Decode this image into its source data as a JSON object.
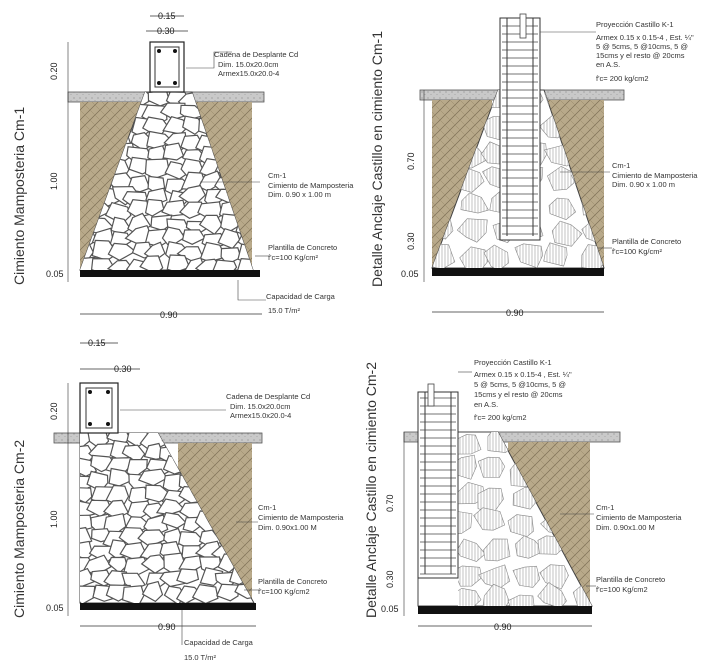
{
  "colors": {
    "soil": "#b8a98a",
    "slab": "#c9c9c9",
    "stone_fill": "#ffffff",
    "stone_line": "#555555",
    "base": "#111111",
    "ink": "#333333"
  },
  "panel1": {
    "vertical_title": "Cimiento Mamposteria Cm-1",
    "dim_015": "0.15",
    "dim_030": "0.30",
    "dim_020": "0.20",
    "dim_100": "1.00",
    "dim_005": "0.05",
    "dim_090": "0.90",
    "cadena_lines": [
      "Cadena de Desplante Cd",
      "Dim. 15.0x20.0cm",
      "Armex15.0x20.0-4"
    ],
    "cm_lines": [
      "Cm-1",
      "Cimiento de Mamposteria",
      "Dim. 0.90 x 1.00 m"
    ],
    "plantilla_lines": [
      "Plantilla de Concreto",
      "f'c=100 Kg/cm²"
    ],
    "capacidad_lines": [
      "Capacidad de Carga",
      "15.0 T/m²"
    ]
  },
  "panel2": {
    "vertical_title": "Detalle Anclaje Castillo en cimiento Cm-1",
    "dim_070": "0.70",
    "dim_030": "0.30",
    "dim_005": "0.05",
    "dim_090": "0.90",
    "castillo_lines": [
      "Proyección Castillo K-1",
      "Armex 0.15 x 0.15-4 , Est. ¼\"",
      "5 @ 5cms, 5 @10cms, 5 @",
      "15cms y el resto @ 20cms",
      "en A.S.",
      "f'c= 200 kg/cm2"
    ],
    "cm_lines": [
      "Cm-1",
      "Cimiento de Mamposteria",
      "Dim. 0.90 x 1.00 m"
    ],
    "plantilla_lines": [
      "Plantilla de Concreto",
      "f'c=100 Kg/cm²"
    ]
  },
  "panel3": {
    "vertical_title": "Cimiento Mamposteria Cm-2",
    "dim_015": "0.15",
    "dim_030": "0.30",
    "dim_020": "0.20",
    "dim_100": "1.00",
    "dim_005": "0.05",
    "dim_090": "0.90",
    "cadena_lines": [
      "Cadena de Desplante Cd",
      "Dim. 15.0x20.0cm",
      "Armex15.0x20.0-4"
    ],
    "cm_lines": [
      "Cm-1",
      "Cimiento de Mamposteria",
      "Dim. 0.90x1.00 M"
    ],
    "plantilla_lines": [
      "Plantilla de Concreto",
      "f'c=100 Kg/cm2"
    ],
    "capacidad_lines": [
      "Capacidad de Carga",
      "15.0 T/m²"
    ]
  },
  "panel4": {
    "vertical_title": "Detalle Anclaje Castillo en cimiento Cm-2",
    "dim_070": "0.70",
    "dim_030": "0.30",
    "dim_005": "0.05",
    "dim_090": "0.90",
    "castillo_lines": [
      "Proyección Castillo K-1",
      "Armex 0.15 x 0.15-4 , Est. ¼\"",
      "5 @ 5cms, 5 @10cms, 5 @",
      "15cms y el resto @ 20cms",
      "en A.S.",
      "f'c= 200 kg/cm2"
    ],
    "cm_lines": [
      "Cm-1",
      "Cimiento de Mamposteria",
      "Dim. 0.90x1.00 M"
    ],
    "plantilla_lines": [
      "Plantilla de Concreto",
      "f'c=100 Kg/cm2"
    ]
  }
}
